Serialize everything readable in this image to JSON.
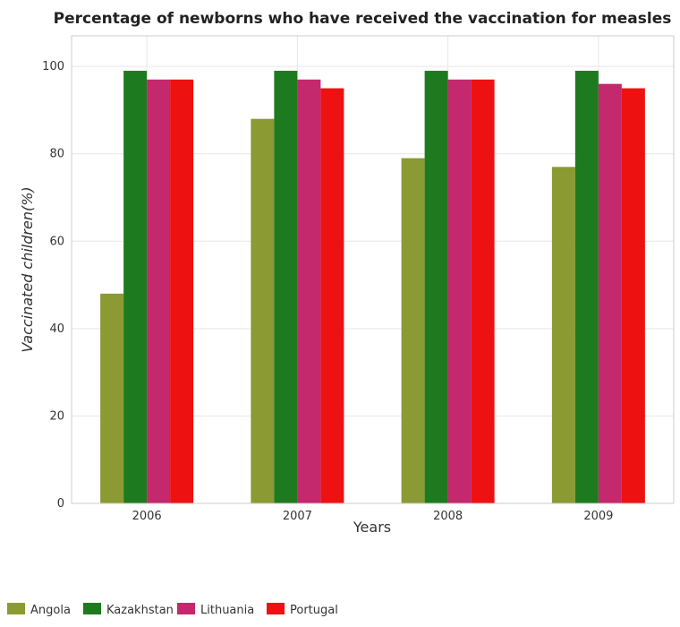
{
  "chart_data": {
    "type": "bar",
    "title": "Percentage of newborns who have received the vaccination for measles",
    "xlabel": "Years",
    "ylabel": "Vaccinated children(%)",
    "categories": [
      "2006",
      "2007",
      "2008",
      "2009"
    ],
    "ylim": [
      0,
      107
    ],
    "yticks": [
      0,
      20,
      40,
      60,
      80,
      100
    ],
    "grid": true,
    "legend_position": "bottom-left",
    "series": [
      {
        "name": "Angola",
        "color": "#8b9a33",
        "values": [
          48,
          88,
          79,
          77
        ]
      },
      {
        "name": "Kazakhstan",
        "color": "#1e7a1e",
        "values": [
          99,
          99,
          99,
          99
        ]
      },
      {
        "name": "Lithuania",
        "color": "#c4286d",
        "values": [
          97,
          97,
          97,
          96
        ]
      },
      {
        "name": "Portugal",
        "color": "#ee1111",
        "values": [
          97,
          95,
          97,
          95
        ]
      }
    ]
  }
}
